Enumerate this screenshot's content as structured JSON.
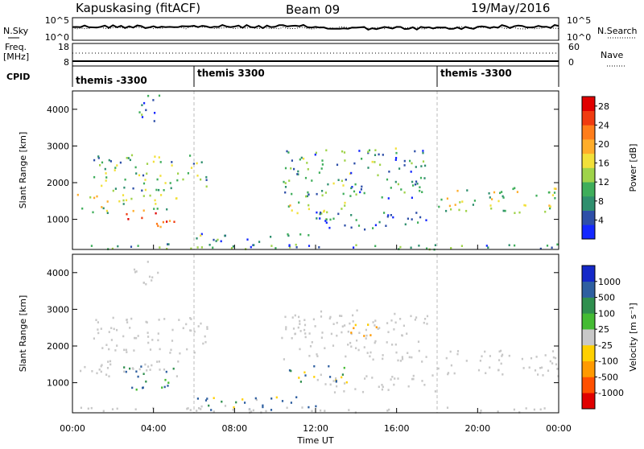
{
  "header": {
    "station": "Kapuskasing (fitACF)",
    "beam": "Beam 09",
    "date": "19/May/2016"
  },
  "top_panels": {
    "nsky_label": "N.Sky",
    "nsearch_label": "N.Search",
    "noise_ticks_left": [
      "10^5",
      "10^0"
    ],
    "noise_ticks_right": [
      "10^5",
      "10^0"
    ],
    "freq_label_1": "Freq.",
    "freq_label_2": "[MHz]",
    "freq_ticks": [
      "18",
      "8"
    ],
    "nave_label": "Nave",
    "nave_ticks": [
      "60",
      "0"
    ],
    "cpid_label": "CPID",
    "cpid_segments": [
      {
        "label": "themis -3300",
        "start_hour": 0
      },
      {
        "label": "themis 3300",
        "start_hour": 6
      },
      {
        "label": "themis -3300",
        "start_hour": 18
      }
    ]
  },
  "chart_data": [
    {
      "type": "heatmap",
      "name": "power",
      "ylabel": "Slant Range [km]",
      "xlabel": "",
      "ylim": [
        180,
        4500
      ],
      "xlim_hours": [
        0,
        24
      ],
      "yticks": [
        1000,
        2000,
        3000,
        4000
      ],
      "colorbar_label": "Power [dB]",
      "colorbar_ticks": [
        "4",
        "8",
        "12",
        "16",
        "20",
        "24",
        "28"
      ],
      "colorbar_range": [
        0,
        30
      ],
      "colors": [
        "#1428ff",
        "#2e4fa8",
        "#2f8f6e",
        "#3fae5b",
        "#9fd34a",
        "#f2e03a",
        "#ffad2a",
        "#ff7d1a",
        "#f03b10",
        "#e00000"
      ],
      "regions": [
        {
          "x": [
            0.0,
            5.2
          ],
          "y": [
            1200,
            1700
          ],
          "value": 14
        },
        {
          "x": [
            2.5,
            5.0
          ],
          "y": [
            800,
            1200
          ],
          "value": 27
        },
        {
          "x": [
            1.0,
            6.8
          ],
          "y": [
            1800,
            2800
          ],
          "value": 11
        },
        {
          "x": [
            3.0,
            4.4
          ],
          "y": [
            3700,
            4400
          ],
          "value": 6
        },
        {
          "x": [
            10.3,
            17.5
          ],
          "y": [
            1600,
            3000
          ],
          "value": 9
        },
        {
          "x": [
            10.5,
            13.5
          ],
          "y": [
            1000,
            1500
          ],
          "value": 14
        },
        {
          "x": [
            12.0,
            18.0
          ],
          "y": [
            750,
            1250
          ],
          "value": 5
        },
        {
          "x": [
            18.0,
            24.0
          ],
          "y": [
            1200,
            1900
          ],
          "value": 13
        },
        {
          "x": [
            6.0,
            12.0
          ],
          "y": [
            250,
            650
          ],
          "value": 9
        },
        {
          "x": [
            0.0,
            24.0
          ],
          "y": [
            200,
            350
          ],
          "value": 8
        }
      ]
    },
    {
      "type": "heatmap",
      "name": "velocity",
      "ylabel": "Slant Range [km]",
      "xlabel": "Time UT",
      "ylim": [
        180,
        4500
      ],
      "xlim_hours": [
        0,
        24
      ],
      "yticks": [
        1000,
        2000,
        3000,
        4000
      ],
      "xticks": [
        "00:00",
        "04:00",
        "08:00",
        "12:00",
        "16:00",
        "20:00",
        "00:00"
      ],
      "colorbar_label": "Velocity [m s⁻¹]",
      "colorbar_ticks": [
        "1000",
        "500",
        "100",
        "25",
        "-25",
        "-100",
        "-500",
        "-1000"
      ],
      "colors": [
        "#1428c8",
        "#2e5fa0",
        "#2f8f4e",
        "#44bb33",
        "#c8c8c8",
        "#ffd000",
        "#ff9a00",
        "#ff5000",
        "#e00000"
      ],
      "regions": [
        {
          "x": [
            0.0,
            5.2
          ],
          "y": [
            1200,
            1700
          ],
          "value": 0
        },
        {
          "x": [
            2.5,
            5.0
          ],
          "y": [
            800,
            1500
          ],
          "value": 150
        },
        {
          "x": [
            1.0,
            6.8
          ],
          "y": [
            1800,
            2800
          ],
          "value": 0
        },
        {
          "x": [
            3.0,
            4.4
          ],
          "y": [
            3700,
            4400
          ],
          "value": 0
        },
        {
          "x": [
            10.3,
            17.5
          ],
          "y": [
            1600,
            3000
          ],
          "value": 0
        },
        {
          "x": [
            13.5,
            15.0
          ],
          "y": [
            2300,
            2700
          ],
          "value": -200
        },
        {
          "x": [
            10.5,
            13.5
          ],
          "y": [
            1000,
            1500
          ],
          "value": 50
        },
        {
          "x": [
            12.0,
            18.0
          ],
          "y": [
            750,
            1250
          ],
          "value": 0
        },
        {
          "x": [
            18.0,
            24.0
          ],
          "y": [
            1200,
            1900
          ],
          "value": 0
        },
        {
          "x": [
            6.0,
            12.0
          ],
          "y": [
            250,
            650
          ],
          "value": 60
        },
        {
          "x": [
            0.0,
            24.0
          ],
          "y": [
            200,
            350
          ],
          "value": 0
        }
      ]
    }
  ]
}
